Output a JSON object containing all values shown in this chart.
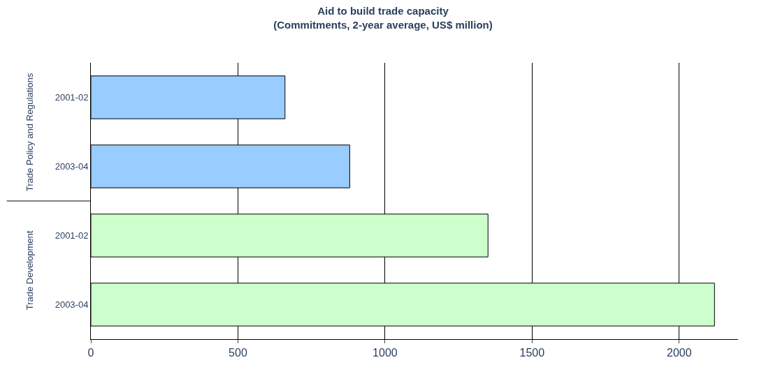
{
  "chart_data": {
    "type": "bar",
    "orientation": "horizontal",
    "title": "Aid to build trade capacity",
    "subtitle": "(Commitments, 2-year average, US$ million)",
    "categories": [
      "2001-02",
      "2003-04",
      "2001-02",
      "2003-04"
    ],
    "values": [
      660,
      880,
      1350,
      2120
    ],
    "colors": [
      "#99ccff",
      "#99ccff",
      "#ccffcc",
      "#ccffcc"
    ],
    "annotations": [
      "Trade Policy and Regulations",
      "Trade Development"
    ],
    "xlim": [
      0,
      2200
    ],
    "xticks": [
      0,
      500,
      1000,
      1500,
      2000
    ],
    "grid": "x",
    "legend": false
  }
}
